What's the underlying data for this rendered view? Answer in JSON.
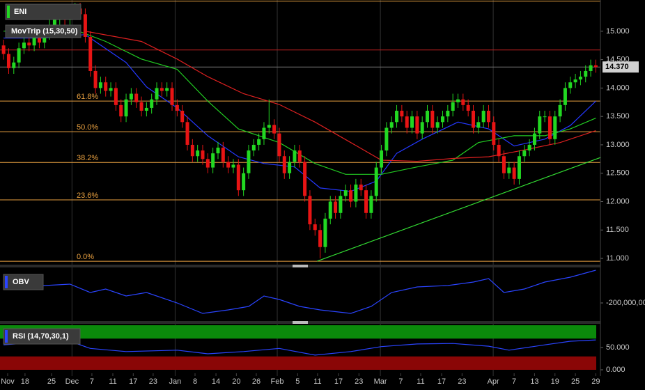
{
  "chart_data": [
    {
      "type": "candlestick",
      "title": "ENI",
      "indicator_label": "MovTrip (15,30,50)",
      "up_color": "#22d822",
      "down_color": "#e81414",
      "open": [
        14.75,
        14.6,
        14.35,
        14.45,
        14.7,
        14.8,
        14.75,
        14.9,
        14.8,
        14.95,
        15.1,
        15.2,
        15.3,
        15.2,
        15.35,
        15.4,
        15.3,
        14.9,
        14.3,
        14.0,
        14.1,
        13.95,
        14.0,
        13.7,
        13.5,
        13.8,
        13.9,
        13.75,
        13.6,
        13.65,
        13.8,
        14.0,
        13.95,
        14.0,
        13.7,
        13.6,
        13.4,
        13.0,
        12.8,
        12.9,
        12.75,
        12.6,
        12.85,
        12.95,
        12.7,
        12.6,
        12.65,
        12.2,
        12.5,
        12.9,
        13.0,
        13.1,
        13.3,
        13.35,
        13.2,
        12.8,
        12.5,
        12.7,
        12.9,
        12.7,
        12.1,
        11.6,
        11.5,
        11.2,
        11.7,
        12.0,
        11.8,
        12.1,
        12.2,
        12.0,
        12.3,
        12.2,
        11.8,
        12.1,
        12.6,
        12.9,
        13.3,
        13.4,
        13.6,
        13.5,
        13.3,
        13.5,
        13.2,
        13.4,
        13.6,
        13.3,
        13.4,
        13.5,
        13.6,
        13.75,
        13.8,
        13.7,
        13.6,
        13.3,
        13.4,
        13.6,
        13.4,
        13.0,
        12.8,
        12.5,
        12.6,
        12.4,
        12.8,
        12.9,
        13.0,
        13.2,
        13.5,
        13.5,
        13.1,
        13.5,
        13.7,
        14.0,
        14.1,
        14.15,
        14.2,
        14.3,
        14.4
      ],
      "high": [
        14.85,
        14.7,
        14.55,
        14.8,
        14.9,
        14.9,
        15.0,
        15.0,
        15.05,
        15.2,
        15.3,
        15.4,
        15.4,
        15.45,
        15.5,
        15.5,
        15.4,
        15.0,
        14.4,
        14.2,
        14.2,
        14.1,
        14.1,
        13.8,
        13.9,
        14.0,
        14.0,
        13.85,
        13.75,
        13.9,
        14.1,
        14.1,
        14.1,
        14.1,
        13.8,
        13.7,
        13.5,
        13.1,
        13.0,
        13.0,
        12.85,
        12.95,
        13.05,
        13.05,
        12.8,
        12.75,
        12.75,
        12.6,
        13.0,
        13.1,
        13.2,
        13.4,
        13.8,
        13.45,
        13.3,
        12.9,
        12.8,
        13.0,
        13.0,
        12.8,
        12.2,
        11.7,
        11.6,
        11.8,
        12.1,
        12.1,
        12.2,
        12.3,
        12.3,
        12.4,
        12.4,
        12.3,
        12.2,
        12.7,
        13.0,
        13.4,
        13.5,
        13.7,
        13.7,
        13.6,
        13.6,
        13.6,
        13.5,
        13.7,
        13.7,
        13.5,
        13.6,
        13.7,
        13.9,
        13.9,
        13.9,
        13.8,
        13.7,
        13.5,
        13.7,
        13.7,
        13.5,
        13.1,
        12.9,
        12.7,
        12.7,
        12.9,
        13.0,
        13.1,
        13.3,
        13.6,
        13.6,
        13.6,
        13.6,
        13.8,
        14.1,
        14.2,
        14.25,
        14.3,
        14.4,
        14.5,
        14.5
      ],
      "low": [
        14.5,
        14.25,
        14.25,
        14.35,
        14.6,
        14.65,
        14.65,
        14.7,
        14.7,
        14.85,
        15.0,
        15.1,
        15.1,
        15.1,
        15.25,
        15.2,
        14.8,
        14.2,
        13.9,
        13.9,
        13.85,
        13.85,
        13.6,
        13.4,
        13.4,
        13.7,
        13.65,
        13.5,
        13.5,
        13.55,
        13.7,
        13.85,
        13.85,
        13.6,
        13.5,
        13.3,
        12.9,
        12.7,
        12.7,
        12.65,
        12.5,
        12.5,
        12.75,
        12.6,
        12.5,
        12.5,
        12.1,
        12.1,
        12.4,
        12.8,
        12.9,
        13.0,
        13.2,
        13.1,
        12.7,
        12.4,
        12.4,
        12.6,
        12.6,
        12.0,
        11.5,
        11.4,
        11.0,
        11.1,
        11.6,
        11.7,
        11.7,
        12.0,
        11.9,
        11.9,
        12.1,
        11.7,
        11.7,
        12.0,
        12.5,
        12.8,
        13.2,
        13.3,
        13.4,
        13.2,
        13.2,
        13.1,
        13.1,
        13.3,
        13.2,
        13.2,
        13.3,
        13.4,
        13.5,
        13.65,
        13.6,
        13.5,
        13.2,
        13.2,
        13.3,
        13.3,
        12.9,
        12.7,
        12.4,
        12.4,
        12.3,
        12.3,
        12.7,
        12.8,
        12.9,
        13.1,
        13.4,
        13.0,
        13.0,
        13.4,
        13.6,
        13.9,
        14.0,
        14.05,
        14.1,
        14.2,
        14.27
      ],
      "close": [
        14.6,
        14.35,
        14.45,
        14.7,
        14.8,
        14.75,
        14.9,
        14.8,
        14.95,
        15.1,
        15.2,
        15.3,
        15.2,
        15.35,
        15.4,
        15.3,
        14.9,
        14.3,
        14.0,
        14.1,
        13.95,
        14.0,
        13.7,
        13.5,
        13.8,
        13.9,
        13.75,
        13.6,
        13.65,
        13.8,
        14.0,
        13.95,
        14.0,
        13.7,
        13.6,
        13.4,
        13.0,
        12.8,
        12.9,
        12.75,
        12.6,
        12.85,
        12.95,
        12.7,
        12.6,
        12.65,
        12.2,
        12.5,
        12.9,
        13.0,
        13.1,
        13.3,
        13.35,
        13.2,
        12.8,
        12.5,
        12.7,
        12.9,
        12.7,
        12.1,
        11.6,
        11.5,
        11.2,
        11.7,
        12.0,
        11.8,
        12.1,
        12.2,
        12.0,
        12.3,
        12.2,
        11.8,
        12.1,
        12.6,
        12.9,
        13.3,
        13.4,
        13.6,
        13.5,
        13.3,
        13.5,
        13.2,
        13.4,
        13.6,
        13.3,
        13.4,
        13.5,
        13.6,
        13.75,
        13.8,
        13.7,
        13.6,
        13.3,
        13.4,
        13.6,
        13.4,
        13.0,
        12.8,
        12.5,
        12.6,
        12.4,
        12.8,
        12.9,
        13.0,
        13.2,
        13.5,
        13.5,
        13.1,
        13.5,
        13.7,
        14.0,
        14.1,
        14.15,
        14.2,
        14.3,
        14.4,
        14.37
      ],
      "lines": [
        {
          "color": "#2438ff",
          "x": [
            0,
            8,
            16,
            24,
            28,
            34,
            40,
            46,
            51,
            57,
            62,
            68,
            73,
            77,
            82,
            89,
            95,
            100,
            106,
            111,
            116
          ],
          "values": [
            14.88,
            14.88,
            14.94,
            14.45,
            14.02,
            13.65,
            13.16,
            12.79,
            12.67,
            12.61,
            12.24,
            12.18,
            12.36,
            12.85,
            13.1,
            13.4,
            13.28,
            12.98,
            13.1,
            13.34,
            13.77
          ]
        },
        {
          "color": "#22cc22",
          "x": [
            0,
            13,
            20,
            27,
            34,
            40,
            46,
            54,
            61,
            67,
            74,
            81,
            88,
            93,
            100,
            106,
            111,
            116
          ],
          "values": [
            15.0,
            15.06,
            14.82,
            14.51,
            14.33,
            13.77,
            13.28,
            13.04,
            12.67,
            12.48,
            12.48,
            12.61,
            12.73,
            13.04,
            13.16,
            13.16,
            13.28,
            13.47
          ]
        },
        {
          "color": "#dd2020",
          "x": [
            16,
            27,
            34,
            40,
            47,
            54,
            61,
            68,
            74,
            81,
            88,
            95,
            102,
            109,
            116
          ],
          "values": [
            15.0,
            14.82,
            14.51,
            14.2,
            13.9,
            13.71,
            13.4,
            13.04,
            12.73,
            12.71,
            12.76,
            12.79,
            12.91,
            13.04,
            13.25
          ]
        }
      ],
      "trendline": {
        "color": "#33dd33",
        "x": [
          61.4,
          117
        ],
        "values": [
          10.95,
          12.78
        ]
      },
      "hlines": [
        {
          "value": 15.53,
          "color": "#e8a040"
        },
        {
          "value": 14.67,
          "color": "#c02020"
        },
        {
          "value": 13.77,
          "label": "61.8%",
          "color": "#e8a040"
        },
        {
          "value": 13.23,
          "label": "50.0%",
          "color": "#e8a040"
        },
        {
          "value": 12.69,
          "label": "38.2%",
          "color": "#e8a040"
        },
        {
          "value": 12.03,
          "label": "23.6%",
          "color": "#e8a040"
        },
        {
          "value": 10.95,
          "label": "0.0%",
          "color": "#e8a040"
        }
      ],
      "last_price": {
        "value": 14.37,
        "label": "14.370"
      },
      "xlim": [
        -0.7,
        116.9
      ],
      "ylim": [
        10.89,
        15.55
      ],
      "yticks": [
        {
          "value": 11,
          "label": "11.000"
        },
        {
          "value": 11.5,
          "label": "11.500"
        },
        {
          "value": 12,
          "label": "12.000"
        },
        {
          "value": 12.5,
          "label": "12.500"
        },
        {
          "value": 13,
          "label": "13.000"
        },
        {
          "value": 13.5,
          "label": "13.500"
        },
        {
          "value": 14,
          "label": "14.000"
        },
        {
          "value": 14.5,
          "label": "14.500"
        },
        {
          "value": 15,
          "label": "15.000"
        }
      ]
    },
    {
      "type": "line",
      "title": "OBV",
      "color": "#2a44ff",
      "x": [
        0,
        3,
        8,
        13,
        17,
        20,
        24,
        28,
        34,
        39,
        44,
        48,
        51,
        54,
        58,
        62,
        68,
        72,
        76,
        81,
        87,
        92,
        95,
        98,
        102,
        106,
        111,
        116
      ],
      "values": [
        -150000000,
        -160000000,
        -150000000,
        -146000000,
        -170000000,
        -160000000,
        -180000000,
        -170000000,
        -200000000,
        -230000000,
        -220000000,
        -210000000,
        -180000000,
        -190000000,
        -210000000,
        -220000000,
        -230000000,
        -210000000,
        -170000000,
        -154000000,
        -150000000,
        -140000000,
        -130000000,
        -170000000,
        -160000000,
        -140000000,
        -126000000,
        -106000000
      ],
      "xlim": [
        -0.7,
        116.9
      ],
      "ylim": [
        -250000000,
        -100000000
      ],
      "yticks": [
        {
          "value": -200000000,
          "label": "-200,000,00"
        }
      ]
    },
    {
      "type": "line",
      "title": "RSI (14,70,30,1)",
      "color": "#2a44ff",
      "x": [
        0,
        6,
        13,
        17,
        24,
        34,
        40,
        47,
        54,
        61,
        68,
        74,
        81,
        88,
        95,
        99,
        106,
        111,
        116
      ],
      "values": [
        56,
        61,
        64,
        48,
        41,
        44,
        36,
        41,
        48,
        33,
        41,
        52,
        58,
        59,
        53,
        44,
        56,
        64,
        67
      ],
      "bands": [
        {
          "from": 70,
          "to": 100,
          "color": "#0b8a0b"
        },
        {
          "from": 0,
          "to": 30,
          "color": "#8a0606"
        }
      ],
      "xlim": [
        -0.7,
        116.9
      ],
      "ylim": [
        0,
        100
      ],
      "yticks": [
        {
          "value": 0,
          "label": "0.000"
        },
        {
          "value": 50,
          "label": "50.000"
        }
      ],
      "xticks": [
        {
          "value": 0.8,
          "label": "Nov"
        },
        {
          "value": 4.2,
          "label": "18"
        },
        {
          "value": 9.4,
          "label": "25"
        },
        {
          "value": 13.4,
          "label": "Dec",
          "major": true
        },
        {
          "value": 17.3,
          "label": "7"
        },
        {
          "value": 21.4,
          "label": "11"
        },
        {
          "value": 25.4,
          "label": "17"
        },
        {
          "value": 29.3,
          "label": "23"
        },
        {
          "value": 33.6,
          "label": "Jan",
          "major": true
        },
        {
          "value": 37.5,
          "label": "8"
        },
        {
          "value": 41.6,
          "label": "14"
        },
        {
          "value": 45.6,
          "label": "20"
        },
        {
          "value": 49.5,
          "label": "26"
        },
        {
          "value": 53.6,
          "label": "Feb",
          "major": true
        },
        {
          "value": 57.6,
          "label": "5"
        },
        {
          "value": 61.5,
          "label": "11"
        },
        {
          "value": 65.6,
          "label": "17"
        },
        {
          "value": 69.6,
          "label": "23"
        },
        {
          "value": 73.8,
          "label": "Mar",
          "major": true
        },
        {
          "value": 77.8,
          "label": "7"
        },
        {
          "value": 81.7,
          "label": "11"
        },
        {
          "value": 85.8,
          "label": "17"
        },
        {
          "value": 89.8,
          "label": "23"
        },
        {
          "value": 95.9,
          "label": "Apr",
          "major": true
        },
        {
          "value": 100,
          "label": "7"
        },
        {
          "value": 104,
          "label": "13"
        },
        {
          "value": 108,
          "label": "19"
        },
        {
          "value": 112,
          "label": "25"
        },
        {
          "value": 116,
          "label": "29"
        }
      ]
    }
  ]
}
